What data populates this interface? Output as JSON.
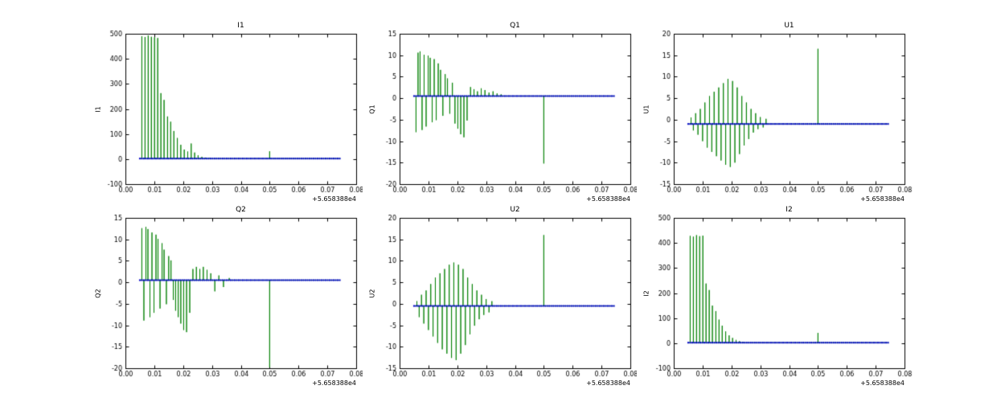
{
  "figure": {
    "background": "#ffffff"
  },
  "chart_data": [
    {
      "type": "line",
      "title": "I1",
      "ylabel": "I1",
      "xlim": [
        0.0,
        0.08
      ],
      "ylim": [
        -100,
        500
      ],
      "xticks": [
        0.0,
        0.01,
        0.02,
        0.03,
        0.04,
        0.05,
        0.06,
        0.07,
        0.08
      ],
      "xtick_labels": [
        "0.00",
        "0.01",
        "0.02",
        "0.03",
        "0.04",
        "0.05",
        "0.06",
        "0.07",
        "0.08"
      ],
      "yticks": [
        -100,
        0,
        100,
        200,
        300,
        400,
        500
      ],
      "x_offset_label": "+5.658388e4",
      "line_color": "#008000",
      "marker_color": "#0000cc",
      "baseline": 2,
      "x_range": [
        0.005,
        0.0745
      ],
      "markers": {
        "start": 0.005,
        "end": 0.0745,
        "step": 0.0007
      },
      "spikes": [
        [
          0.0057,
          490
        ],
        [
          0.0068,
          487
        ],
        [
          0.0079,
          493
        ],
        [
          0.009,
          488
        ],
        [
          0.0101,
          486
        ],
        [
          0.0112,
          483
        ],
        [
          0.0123,
          263
        ],
        [
          0.0134,
          236
        ],
        [
          0.0146,
          170
        ],
        [
          0.0157,
          149
        ],
        [
          0.0168,
          112
        ],
        [
          0.018,
          84
        ],
        [
          0.0192,
          57
        ],
        [
          0.0204,
          38
        ],
        [
          0.0216,
          30
        ],
        [
          0.0228,
          62
        ],
        [
          0.024,
          26
        ],
        [
          0.0252,
          15
        ],
        [
          0.0265,
          9
        ],
        [
          0.0278,
          6
        ],
        [
          0.0292,
          4
        ],
        [
          0.05,
          31
        ]
      ]
    },
    {
      "type": "line",
      "title": "Q1",
      "ylabel": "Q1",
      "xlim": [
        0.0,
        0.08
      ],
      "ylim": [
        -20,
        15
      ],
      "xticks": [
        0.0,
        0.01,
        0.02,
        0.03,
        0.04,
        0.05,
        0.06,
        0.07,
        0.08
      ],
      "xtick_labels": [
        "0.00",
        "0.01",
        "0.02",
        "0.03",
        "0.04",
        "0.05",
        "0.06",
        "0.07",
        "0.08"
      ],
      "yticks": [
        -20,
        -15,
        -10,
        -5,
        0,
        5,
        10,
        15
      ],
      "x_offset_label": "+5.658388e4",
      "line_color": "#008000",
      "marker_color": "#0000cc",
      "baseline": 0.5,
      "x_range": [
        0.005,
        0.0745
      ],
      "markers": {
        "start": 0.005,
        "end": 0.0745,
        "step": 0.0007
      },
      "spikes": [
        [
          0.0057,
          -7.9
        ],
        [
          0.0064,
          10.6
        ],
        [
          0.0071,
          10.9
        ],
        [
          0.0078,
          -7.4
        ],
        [
          0.0085,
          10.1
        ],
        [
          0.0092,
          -6.6
        ],
        [
          0.0099,
          9.9
        ],
        [
          0.0106,
          9.4
        ],
        [
          0.0113,
          -5.6
        ],
        [
          0.012,
          9.1
        ],
        [
          0.0127,
          -5.1
        ],
        [
          0.0134,
          8.1
        ],
        [
          0.0142,
          6.6
        ],
        [
          0.015,
          -4.1
        ],
        [
          0.0158,
          5.6
        ],
        [
          0.0166,
          4.6
        ],
        [
          0.0174,
          -3.6
        ],
        [
          0.0183,
          3.6
        ],
        [
          0.0192,
          -5.9
        ],
        [
          0.0202,
          -7.1
        ],
        [
          0.0212,
          -8.4
        ],
        [
          0.0223,
          -9.1
        ],
        [
          0.0234,
          -5.2
        ],
        [
          0.0246,
          2.6
        ],
        [
          0.0258,
          2.1
        ],
        [
          0.027,
          1.6
        ],
        [
          0.0283,
          2.3
        ],
        [
          0.0296,
          1.9
        ],
        [
          0.031,
          1.3
        ],
        [
          0.0324,
          1.6
        ],
        [
          0.0338,
          1.1
        ],
        [
          0.0352,
          0.9
        ],
        [
          0.05,
          -15.2
        ]
      ]
    },
    {
      "type": "line",
      "title": "U1",
      "ylabel": "U1",
      "xlim": [
        0.0,
        0.08
      ],
      "ylim": [
        -15,
        20
      ],
      "xticks": [
        0.0,
        0.01,
        0.02,
        0.03,
        0.04,
        0.05,
        0.06,
        0.07,
        0.08
      ],
      "xtick_labels": [
        "0.00",
        "0.01",
        "0.02",
        "0.03",
        "0.04",
        "0.05",
        "0.06",
        "0.07",
        "0.08"
      ],
      "yticks": [
        -15,
        -10,
        -5,
        0,
        5,
        10,
        15,
        20
      ],
      "x_offset_label": "+5.658388e4",
      "line_color": "#008000",
      "marker_color": "#0000cc",
      "baseline": -1,
      "x_range": [
        0.005,
        0.0745
      ],
      "markers": {
        "start": 0.005,
        "end": 0.0745,
        "step": 0.0007
      },
      "spikes": [
        [
          0.006,
          0.5
        ],
        [
          0.0068,
          -2.5
        ],
        [
          0.0076,
          1.5
        ],
        [
          0.0084,
          -3.5
        ],
        [
          0.0092,
          2.5
        ],
        [
          0.01,
          -5.0
        ],
        [
          0.0108,
          4.0
        ],
        [
          0.0116,
          -6.5
        ],
        [
          0.0124,
          5.5
        ],
        [
          0.0132,
          -7.5
        ],
        [
          0.014,
          6.5
        ],
        [
          0.0148,
          -8.5
        ],
        [
          0.0156,
          7.5
        ],
        [
          0.0164,
          -9.5
        ],
        [
          0.0172,
          8.5
        ],
        [
          0.018,
          -10.5
        ],
        [
          0.0188,
          9.5
        ],
        [
          0.0196,
          -11.0
        ],
        [
          0.0204,
          9.0
        ],
        [
          0.0212,
          -10.0
        ],
        [
          0.022,
          7.5
        ],
        [
          0.0228,
          -8.0
        ],
        [
          0.0236,
          5.5
        ],
        [
          0.0244,
          -6.0
        ],
        [
          0.0252,
          4.0
        ],
        [
          0.026,
          -4.5
        ],
        [
          0.0268,
          2.5
        ],
        [
          0.0276,
          -3.0
        ],
        [
          0.0284,
          1.5
        ],
        [
          0.0292,
          -2.2
        ],
        [
          0.03,
          0.6
        ],
        [
          0.031,
          -1.8
        ],
        [
          0.032,
          0.2
        ],
        [
          0.05,
          16.5
        ]
      ]
    },
    {
      "type": "line",
      "title": "Q2",
      "ylabel": "Q2",
      "xlim": [
        0.0,
        0.08
      ],
      "ylim": [
        -20,
        15
      ],
      "xticks": [
        0.0,
        0.01,
        0.02,
        0.03,
        0.04,
        0.05,
        0.06,
        0.07,
        0.08
      ],
      "xtick_labels": [
        "0.00",
        "0.01",
        "0.02",
        "0.03",
        "0.04",
        "0.05",
        "0.06",
        "0.07",
        "0.08"
      ],
      "yticks": [
        -20,
        -15,
        -10,
        -5,
        0,
        5,
        10,
        15
      ],
      "x_offset_label": "+5.658388e4",
      "line_color": "#008000",
      "marker_color": "#0000cc",
      "baseline": 0.5,
      "x_range": [
        0.005,
        0.0745
      ],
      "markers": {
        "start": 0.005,
        "end": 0.0745,
        "step": 0.0007
      },
      "spikes": [
        [
          0.0057,
          12.6
        ],
        [
          0.0064,
          -8.9
        ],
        [
          0.0071,
          12.9
        ],
        [
          0.0078,
          12.4
        ],
        [
          0.0085,
          -8.1
        ],
        [
          0.0092,
          11.6
        ],
        [
          0.0099,
          -7.1
        ],
        [
          0.0106,
          11.1
        ],
        [
          0.0113,
          10.1
        ],
        [
          0.012,
          -6.1
        ],
        [
          0.0127,
          9.1
        ],
        [
          0.0134,
          7.6
        ],
        [
          0.0142,
          -5.1
        ],
        [
          0.015,
          6.1
        ],
        [
          0.0158,
          5.1
        ],
        [
          0.0166,
          -4.1
        ],
        [
          0.0174,
          -6.6
        ],
        [
          0.0183,
          -8.1
        ],
        [
          0.0192,
          -9.6
        ],
        [
          0.0202,
          -11.1
        ],
        [
          0.0212,
          -11.6
        ],
        [
          0.0223,
          -7.1
        ],
        [
          0.0234,
          3.1
        ],
        [
          0.0246,
          3.6
        ],
        [
          0.0258,
          3.1
        ],
        [
          0.027,
          3.6
        ],
        [
          0.0283,
          2.9
        ],
        [
          0.0296,
          2.1
        ],
        [
          0.031,
          -2.1
        ],
        [
          0.0324,
          1.6
        ],
        [
          0.034,
          -1.1
        ],
        [
          0.036,
          1.0
        ],
        [
          0.05,
          -19.8
        ]
      ]
    },
    {
      "type": "line",
      "title": "U2",
      "ylabel": "U2",
      "xlim": [
        0.0,
        0.08
      ],
      "ylim": [
        -15,
        20
      ],
      "xticks": [
        0.0,
        0.01,
        0.02,
        0.03,
        0.04,
        0.05,
        0.06,
        0.07,
        0.08
      ],
      "xtick_labels": [
        "0.00",
        "0.01",
        "0.02",
        "0.03",
        "0.04",
        "0.05",
        "0.06",
        "0.07",
        "0.08"
      ],
      "yticks": [
        -15,
        -10,
        -5,
        0,
        5,
        10,
        15,
        20
      ],
      "x_offset_label": "+5.658388e4",
      "line_color": "#008000",
      "marker_color": "#0000cc",
      "baseline": -0.5,
      "x_range": [
        0.005,
        0.0745
      ],
      "markers": {
        "start": 0.005,
        "end": 0.0745,
        "step": 0.0007
      },
      "spikes": [
        [
          0.006,
          0.6
        ],
        [
          0.0068,
          -3.1
        ],
        [
          0.0076,
          2.1
        ],
        [
          0.0084,
          -4.6
        ],
        [
          0.0092,
          3.1
        ],
        [
          0.01,
          -6.1
        ],
        [
          0.0108,
          4.6
        ],
        [
          0.0116,
          -7.6
        ],
        [
          0.0124,
          6.1
        ],
        [
          0.0132,
          -9.1
        ],
        [
          0.014,
          7.1
        ],
        [
          0.0148,
          -10.6
        ],
        [
          0.0156,
          8.1
        ],
        [
          0.0164,
          -11.6
        ],
        [
          0.0172,
          9.1
        ],
        [
          0.018,
          -12.6
        ],
        [
          0.0188,
          9.6
        ],
        [
          0.0196,
          -13.1
        ],
        [
          0.0204,
          9.1
        ],
        [
          0.0212,
          -11.6
        ],
        [
          0.022,
          8.1
        ],
        [
          0.0228,
          -9.6
        ],
        [
          0.0236,
          6.1
        ],
        [
          0.0244,
          -7.1
        ],
        [
          0.0252,
          4.6
        ],
        [
          0.026,
          -5.1
        ],
        [
          0.0268,
          3.1
        ],
        [
          0.0276,
          -3.6
        ],
        [
          0.0284,
          2.1
        ],
        [
          0.0292,
          -2.6
        ],
        [
          0.03,
          1.1
        ],
        [
          0.031,
          -2.0
        ],
        [
          0.032,
          0.6
        ],
        [
          0.05,
          16.0
        ]
      ]
    },
    {
      "type": "line",
      "title": "I2",
      "ylabel": "I2",
      "xlim": [
        0.0,
        0.08
      ],
      "ylim": [
        -100,
        500
      ],
      "xticks": [
        0.0,
        0.01,
        0.02,
        0.03,
        0.04,
        0.05,
        0.06,
        0.07,
        0.08
      ],
      "xtick_labels": [
        "0.00",
        "0.01",
        "0.02",
        "0.03",
        "0.04",
        "0.05",
        "0.06",
        "0.07",
        "0.08"
      ],
      "yticks": [
        -100,
        0,
        100,
        200,
        300,
        400,
        500
      ],
      "x_offset_label": "+5.658388e4",
      "line_color": "#008000",
      "marker_color": "#0000cc",
      "baseline": 2,
      "x_range": [
        0.005,
        0.0745
      ],
      "markers": {
        "start": 0.005,
        "end": 0.0745,
        "step": 0.0007
      },
      "spikes": [
        [
          0.0057,
          428
        ],
        [
          0.0068,
          425
        ],
        [
          0.0079,
          431
        ],
        [
          0.009,
          427
        ],
        [
          0.0101,
          429
        ],
        [
          0.0112,
          238
        ],
        [
          0.0123,
          212
        ],
        [
          0.0134,
          150
        ],
        [
          0.0146,
          128
        ],
        [
          0.0157,
          94
        ],
        [
          0.0168,
          70
        ],
        [
          0.018,
          47
        ],
        [
          0.0192,
          31
        ],
        [
          0.0204,
          21
        ],
        [
          0.0216,
          13
        ],
        [
          0.0228,
          8
        ],
        [
          0.024,
          5
        ],
        [
          0.05,
          41
        ]
      ]
    }
  ]
}
